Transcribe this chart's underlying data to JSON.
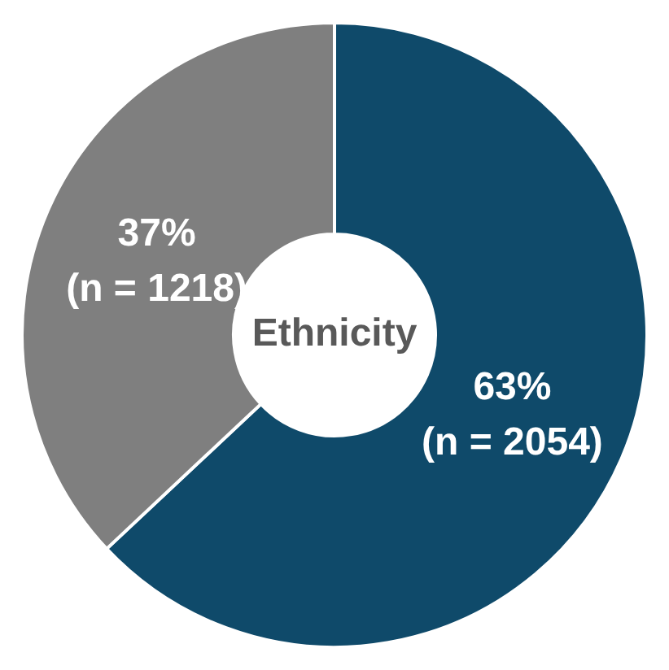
{
  "chart_data": {
    "type": "donut",
    "title": "Ethnicity",
    "categories": [
      null,
      null
    ],
    "values": [
      63,
      37
    ],
    "colors": [
      "#0f4a6a",
      "#7f7f7f"
    ],
    "value_labels": [
      "63%\n(n = 2054)",
      "37%\n(n = 1218)"
    ]
  }
}
